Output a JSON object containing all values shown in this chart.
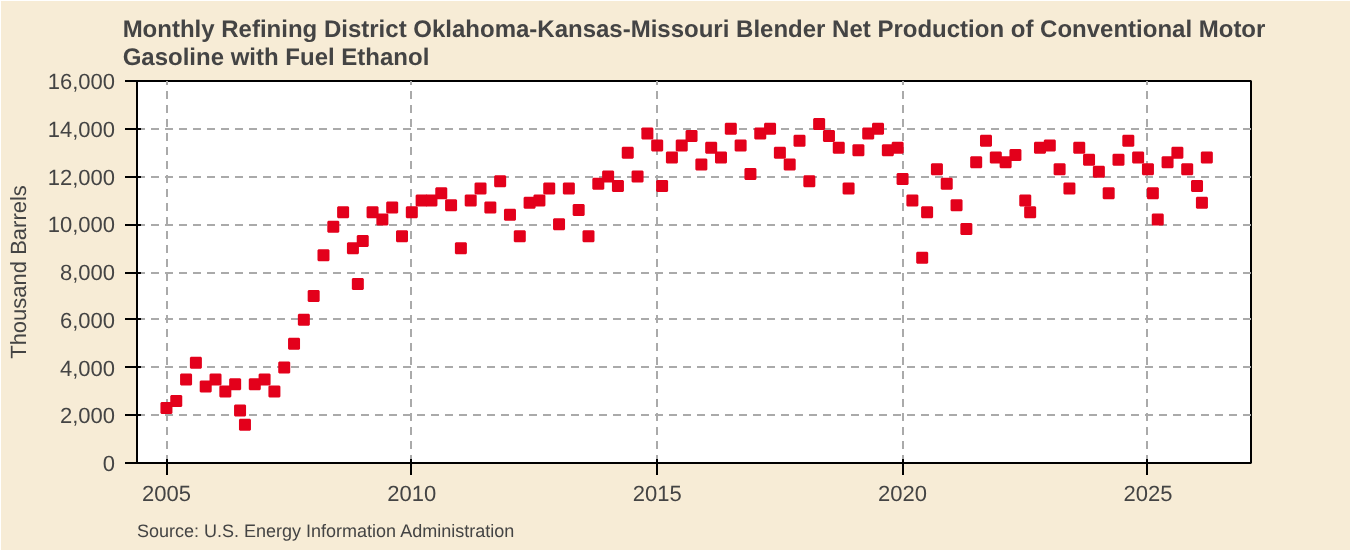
{
  "chart_data": {
    "type": "scatter",
    "title": "Monthly Refining District Oklahoma-Kansas-Missouri Blender Net Production of Conventional Motor Gasoline with Fuel Ethanol",
    "ylabel": "Thousand Barrels",
    "annotations": [
      "Source: U.S. Energy Information Administration"
    ],
    "x": [
      2005.0,
      2005.2,
      2005.4,
      2005.6,
      2005.8,
      2006.0,
      2006.2,
      2006.4,
      2006.5,
      2006.6,
      2006.8,
      2007.0,
      2007.2,
      2007.4,
      2007.6,
      2007.8,
      2008.0,
      2008.2,
      2008.4,
      2008.6,
      2008.8,
      2008.9,
      2009.0,
      2009.2,
      2009.4,
      2009.6,
      2009.8,
      2010.0,
      2010.2,
      2010.4,
      2010.6,
      2010.8,
      2011.0,
      2011.2,
      2011.4,
      2011.6,
      2011.8,
      2012.0,
      2012.2,
      2012.4,
      2012.6,
      2012.8,
      2013.0,
      2013.2,
      2013.4,
      2013.6,
      2013.8,
      2014.0,
      2014.2,
      2014.4,
      2014.6,
      2014.8,
      2015.0,
      2015.1,
      2015.3,
      2015.5,
      2015.7,
      2015.9,
      2016.1,
      2016.3,
      2016.5,
      2016.7,
      2016.9,
      2017.1,
      2017.3,
      2017.5,
      2017.7,
      2017.9,
      2018.1,
      2018.3,
      2018.5,
      2018.7,
      2018.9,
      2019.1,
      2019.3,
      2019.5,
      2019.7,
      2019.9,
      2020.0,
      2020.2,
      2020.4,
      2020.5,
      2020.7,
      2020.9,
      2021.1,
      2021.3,
      2021.5,
      2021.7,
      2021.9,
      2022.1,
      2022.3,
      2022.5,
      2022.6,
      2022.8,
      2023.0,
      2023.2,
      2023.4,
      2023.6,
      2023.8,
      2024.0,
      2024.2,
      2024.4,
      2024.6,
      2024.8,
      2025.0,
      2025.1,
      2025.2,
      2025.4,
      2025.6,
      2025.8,
      2026.0,
      2026.1,
      2026.2
    ],
    "series": [
      {
        "color": "#e3001b",
        "values": [
          2300,
          2600,
          3500,
          4200,
          3200,
          3500,
          3000,
          3300,
          2200,
          1600,
          3300,
          3500,
          3000,
          4000,
          5000,
          6000,
          7000,
          8700,
          9900,
          10500,
          9000,
          7500,
          9300,
          10500,
          10200,
          10700,
          9500,
          10500,
          11000,
          11000,
          11300,
          10800,
          9000,
          11000,
          11500,
          10700,
          11800,
          10400,
          9500,
          10900,
          11000,
          11500,
          10000,
          11500,
          10600,
          9500,
          11700,
          12000,
          11600,
          13000,
          12000,
          13800,
          13300,
          11600,
          12800,
          13300,
          13700,
          12500,
          13200,
          12800,
          14000,
          13300,
          12100,
          13800,
          14000,
          13000,
          12500,
          13500,
          11800,
          14200,
          13700,
          13200,
          11500,
          13100,
          13800,
          14000,
          13100,
          13200,
          11900,
          11000,
          8600,
          10500,
          12300,
          11700,
          10800,
          9800,
          12600,
          13500,
          12800,
          12600,
          12900,
          11000,
          10500,
          13200,
          13300,
          12300,
          11500,
          13200,
          12700,
          12200,
          11300,
          12700,
          13500,
          12800,
          12300,
          11300,
          10200,
          12600,
          13000,
          12300,
          11600,
          10900,
          12800
        ]
      }
    ],
    "xlim": [
      2004.4,
      2027.1
    ],
    "ylim": [
      0,
      16000
    ],
    "xticks": [
      2005,
      2010,
      2015,
      2020,
      2025
    ],
    "yticks": [
      {
        "value": 0,
        "label": "0"
      },
      {
        "value": 2000,
        "label": "2,000"
      },
      {
        "value": 4000,
        "label": "4,000"
      },
      {
        "value": 6000,
        "label": "6,000"
      },
      {
        "value": 8000,
        "label": "8,000"
      },
      {
        "value": 10000,
        "label": "10,000"
      },
      {
        "value": 12000,
        "label": "12,000"
      },
      {
        "value": 14000,
        "label": "14,000"
      },
      {
        "value": 16000,
        "label": "16,000"
      }
    ],
    "grid": true,
    "marker": "square"
  }
}
